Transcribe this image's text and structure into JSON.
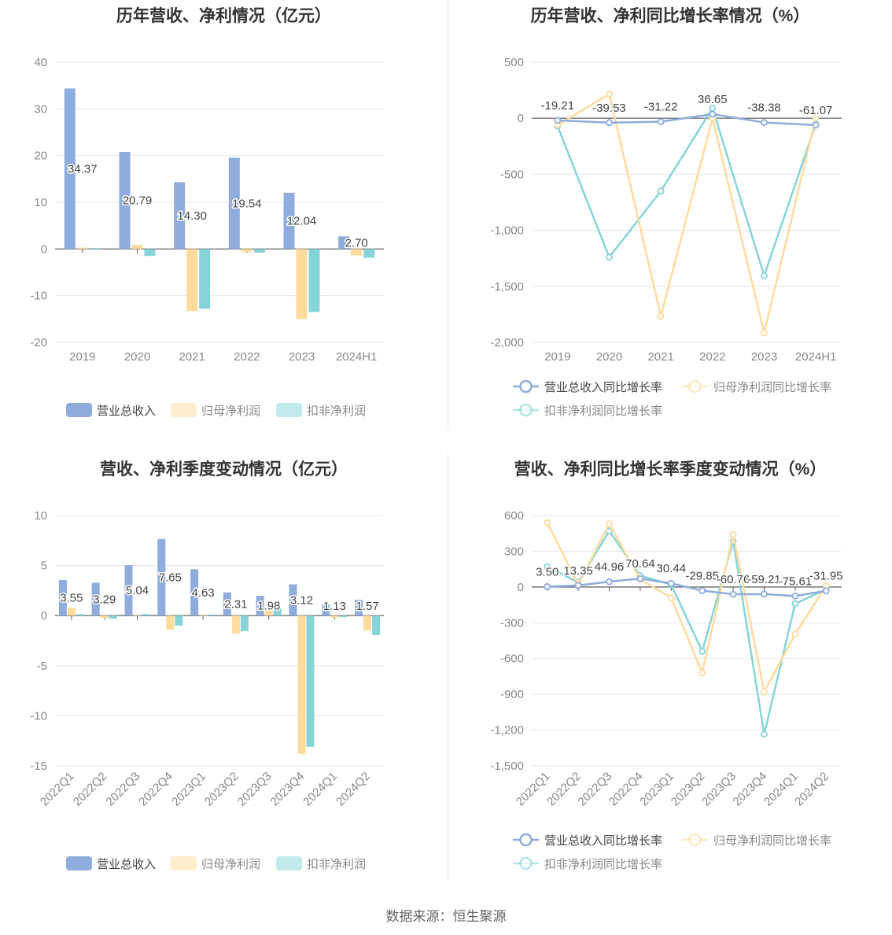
{
  "source": "数据来源：恒生聚源",
  "colors": {
    "revenue": "#8eacdc",
    "net_profit": "#ffdb9e",
    "deducted_profit": "#86d4d8"
  },
  "chart_data": [
    {
      "id": "annual-amount",
      "type": "bar",
      "title": "历年营收、净利情况（亿元）",
      "categories": [
        "2019",
        "2020",
        "2021",
        "2022",
        "2023",
        "2024H1"
      ],
      "yticks": [
        40,
        30,
        20,
        10,
        0,
        -10,
        -20
      ],
      "ylim": [
        -20,
        40
      ],
      "grid": true,
      "legend_position": "bottom",
      "series": [
        {
          "name": "营业总收入",
          "values": [
            34.37,
            20.79,
            14.3,
            19.54,
            12.04,
            2.7
          ],
          "labels": [
            "34.37",
            "20.79",
            "14.30",
            "19.54",
            "12.04",
            "2.70"
          ]
        },
        {
          "name": "归母净利润",
          "values": [
            0.3,
            0.9,
            -13.3,
            -0.6,
            -15.0,
            -1.4
          ]
        },
        {
          "name": "扣非净利润",
          "values": [
            0.2,
            -1.5,
            -12.8,
            -0.8,
            -13.5,
            -1.9
          ]
        }
      ]
    },
    {
      "id": "annual-growth",
      "type": "line",
      "title": "历年营收、净利同比增长率情况（%）",
      "categories": [
        "2019",
        "2020",
        "2021",
        "2022",
        "2023",
        "2024H1"
      ],
      "yticks": [
        500,
        0,
        -500,
        -1000,
        -1500,
        -2000
      ],
      "ytick_labels": [
        "500",
        "0",
        "-500",
        "-1,000",
        "-1,500",
        "-2,000"
      ],
      "ylim": [
        -2000,
        500
      ],
      "grid": true,
      "legend_position": "bottom",
      "series": [
        {
          "name": "营业总收入同比增长率",
          "values": [
            -19.21,
            -39.53,
            -31.22,
            36.65,
            -38.38,
            -61.07
          ],
          "labels": [
            "-19.21",
            "-39.53",
            "-31.22",
            "36.65",
            "-38.38",
            "-61.07"
          ]
        },
        {
          "name": "归母净利润同比增长率",
          "values": [
            -60,
            215,
            -1765,
            0,
            -1915,
            5
          ]
        },
        {
          "name": "扣非净利润同比增长率",
          "values": [
            -70,
            -1240,
            -650,
            90,
            -1405,
            -50
          ]
        }
      ]
    },
    {
      "id": "quarterly-amount",
      "type": "bar",
      "title": "营收、净利季度变动情况（亿元）",
      "categories": [
        "2022Q1",
        "2022Q2",
        "2022Q3",
        "2022Q4",
        "2023Q1",
        "2023Q2",
        "2023Q3",
        "2023Q4",
        "2024Q1",
        "2024Q2"
      ],
      "yticks": [
        10,
        5,
        0,
        -5,
        -10,
        -15
      ],
      "ylim": [
        -15,
        10
      ],
      "grid": true,
      "legend_position": "bottom",
      "series": [
        {
          "name": "营业总收入",
          "values": [
            3.55,
            3.29,
            5.04,
            7.65,
            4.63,
            2.31,
            1.98,
            3.12,
            1.13,
            1.57
          ],
          "labels": [
            "3.55",
            "3.29",
            "5.04",
            "7.65",
            "4.63",
            "2.31",
            "1.98",
            "3.12",
            "1.13",
            "1.57"
          ]
        },
        {
          "name": "归母净利润",
          "values": [
            0.75,
            -0.25,
            -0.05,
            -1.4,
            -0.05,
            -1.8,
            0.5,
            -13.8,
            -0.2,
            -1.5
          ]
        },
        {
          "name": "扣非净利润",
          "values": [
            0.15,
            -0.3,
            0.15,
            -1.0,
            0.1,
            -1.55,
            0.8,
            -13.1,
            -0.15,
            -1.95
          ]
        }
      ]
    },
    {
      "id": "quarterly-growth",
      "type": "line",
      "title": "营收、净利同比增长率季度变动情况（%）",
      "categories": [
        "2022Q1",
        "2022Q2",
        "2022Q3",
        "2022Q4",
        "2023Q1",
        "2023Q2",
        "2023Q3",
        "2023Q4",
        "2024Q1",
        "2024Q2"
      ],
      "yticks": [
        600,
        300,
        0,
        -300,
        -600,
        -900,
        -1200,
        -1500
      ],
      "ytick_labels": [
        "600",
        "300",
        "0",
        "-300",
        "-600",
        "-900",
        "-1,200",
        "-1,500"
      ],
      "ylim": [
        -1500,
        600
      ],
      "grid": true,
      "legend_position": "bottom",
      "series": [
        {
          "name": "营业总收入同比增长率",
          "values": [
            3.5,
            13.35,
            44.96,
            70.64,
            30.44,
            -29.85,
            -60.76,
            -59.21,
            -75.61,
            -31.95
          ],
          "labels": [
            "3.50",
            "13.35",
            "44.96",
            "70.64",
            "30.44",
            "-29.85",
            "-60.76",
            "-59.21",
            "-75.61",
            "-31.95"
          ]
        },
        {
          "name": "归母净利润同比增长率",
          "values": [
            540,
            20,
            530,
            65,
            -90,
            -720,
            440,
            -880,
            -395,
            10
          ]
        },
        {
          "name": "扣非净利润同比增长率",
          "values": [
            170,
            40,
            470,
            95,
            20,
            -540,
            385,
            -1235,
            -140,
            -20
          ]
        }
      ]
    }
  ]
}
